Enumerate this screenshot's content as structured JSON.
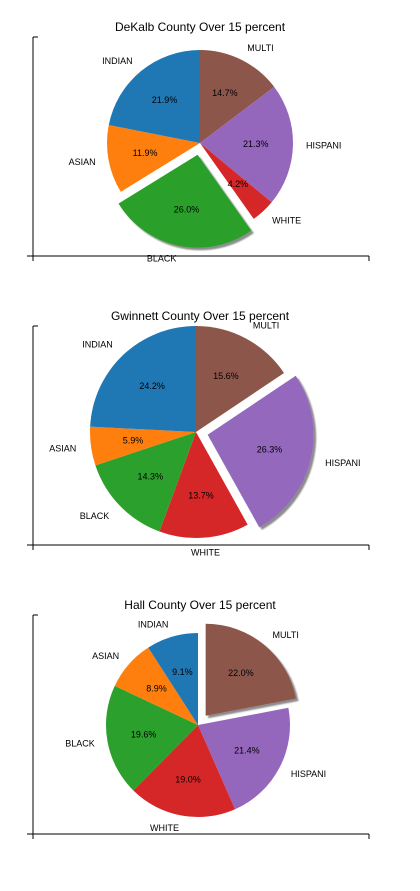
{
  "colors": {
    "INDIAN": "#1f77b4",
    "ASIAN": "#ff7f0e",
    "BLACK": "#2ca02c",
    "WHITE": "#d62728",
    "HISPANI": "#9467bd",
    "MULTI": "#8c564b"
  },
  "chart_data": [
    {
      "type": "pie",
      "title": "DeKalb County Over 15 percent",
      "slices": [
        {
          "label": "MULTI",
          "value": 14.7,
          "pct": "14.7%",
          "exploded": false
        },
        {
          "label": "HISPANI",
          "value": 21.3,
          "pct": "21.3%",
          "exploded": false
        },
        {
          "label": "WHITE",
          "value": 4.2,
          "pct": "4.2%",
          "exploded": false
        },
        {
          "label": "BLACK",
          "value": 26.0,
          "pct": "26.0%",
          "exploded": true
        },
        {
          "label": "ASIAN",
          "value": 11.9,
          "pct": "11.9%",
          "exploded": false
        },
        {
          "label": "INDIAN",
          "value": 21.9,
          "pct": "21.9%",
          "exploded": false
        }
      ]
    },
    {
      "type": "pie",
      "title": "Gwinnett County Over 15 percent",
      "slices": [
        {
          "label": "MULTI",
          "value": 15.6,
          "pct": "15.6%",
          "exploded": false
        },
        {
          "label": "HISPANI",
          "value": 26.3,
          "pct": "26.3%",
          "exploded": true
        },
        {
          "label": "WHITE",
          "value": 13.7,
          "pct": "13.7%",
          "exploded": false
        },
        {
          "label": "BLACK",
          "value": 14.3,
          "pct": "14.3%",
          "exploded": false
        },
        {
          "label": "ASIAN",
          "value": 5.9,
          "pct": "5.9%",
          "exploded": false
        },
        {
          "label": "INDIAN",
          "value": 24.2,
          "pct": "24.2%",
          "exploded": false
        }
      ]
    },
    {
      "type": "pie",
      "title": "Hall County Over 15 percent",
      "slices": [
        {
          "label": "MULTI",
          "value": 22.0,
          "pct": "22.0%",
          "exploded": true
        },
        {
          "label": "HISPANI",
          "value": 21.4,
          "pct": "21.4%",
          "exploded": false
        },
        {
          "label": "WHITE",
          "value": 19.0,
          "pct": "19.0%",
          "exploded": false
        },
        {
          "label": "BLACK",
          "value": 19.6,
          "pct": "19.6%",
          "exploded": false
        },
        {
          "label": "ASIAN",
          "value": 8.9,
          "pct": "8.9%",
          "exploded": false
        },
        {
          "label": "INDIAN",
          "value": 9.1,
          "pct": "9.1%",
          "exploded": false
        }
      ]
    }
  ]
}
